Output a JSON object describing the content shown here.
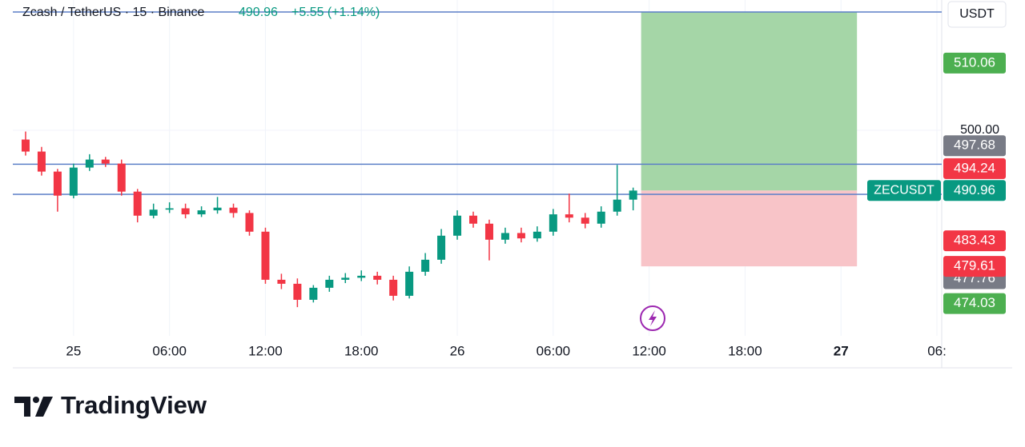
{
  "header": {
    "symbol": "Zcash / TetherUS · 15 · Binance",
    "price": "490.96",
    "change": "+5.55 (+1.14%)"
  },
  "currency": "USDT",
  "chart_data": {
    "type": "candlestick",
    "x": [
      -3,
      -2,
      -1,
      0,
      1,
      2,
      3,
      4,
      5,
      6,
      7,
      8,
      9,
      10,
      11,
      12,
      13,
      14,
      15,
      16,
      17,
      18,
      19,
      20,
      21,
      22,
      23,
      24,
      25,
      26,
      27,
      28,
      29,
      30,
      31,
      32,
      33,
      34,
      35
    ],
    "open": [
      498.6,
      496.8,
      493.8,
      490.2,
      494.4,
      495.6,
      495.0,
      490.8,
      487.2,
      488.1,
      488.3,
      487.4,
      488.0,
      488.4,
      487.6,
      484.8,
      477.6,
      477.0,
      474.6,
      476.4,
      477.6,
      477.9,
      478.2,
      477.6,
      475.2,
      478.8,
      480.6,
      484.2,
      487.2,
      486.0,
      483.6,
      484.6,
      483.8,
      484.8,
      487.4,
      486.9,
      486.0,
      487.8,
      489.6
    ],
    "high": [
      499.8,
      497.5,
      494.2,
      495.0,
      496.4,
      496.0,
      495.6,
      491.2,
      489.0,
      489.2,
      489.0,
      488.6,
      490.0,
      489.0,
      488.0,
      485.4,
      478.5,
      477.8,
      476.8,
      478.2,
      478.6,
      479.0,
      478.8,
      478.2,
      479.6,
      481.6,
      485.2,
      488.0,
      487.8,
      486.6,
      485.4,
      485.4,
      485.6,
      488.2,
      490.5,
      487.6,
      488.6,
      494.8,
      491.4
    ],
    "low": [
      496.2,
      493.2,
      487.8,
      489.8,
      493.9,
      494.5,
      490.2,
      486.2,
      486.8,
      487.6,
      486.8,
      487.0,
      487.5,
      486.9,
      484.2,
      477.0,
      476.2,
      473.5,
      474.2,
      475.8,
      477.1,
      477.4,
      476.9,
      474.5,
      474.8,
      478.2,
      480.0,
      483.6,
      485.4,
      480.5,
      483.0,
      483.2,
      483.3,
      484.2,
      486.2,
      485.3,
      485.4,
      487.2,
      488.0
    ],
    "close": [
      496.8,
      493.8,
      490.2,
      494.4,
      495.6,
      495.0,
      490.8,
      487.2,
      488.1,
      488.3,
      487.4,
      488.0,
      488.4,
      487.6,
      484.8,
      477.6,
      477.0,
      474.6,
      476.4,
      477.6,
      477.9,
      478.2,
      477.6,
      475.2,
      478.8,
      480.6,
      484.2,
      487.2,
      486.0,
      483.6,
      484.6,
      483.8,
      484.8,
      487.4,
      486.9,
      486.0,
      487.8,
      489.6,
      490.96
    ],
    "up_color": "#089981",
    "down_color": "#f23645",
    "xlim": [
      -3.8,
      54.3
    ],
    "ylim": [
      469.2,
      519.5
    ],
    "xticks": [
      {
        "value": 0,
        "label": "25"
      },
      {
        "value": 6,
        "label": "06:00"
      },
      {
        "value": 12,
        "label": "12:00"
      },
      {
        "value": 18,
        "label": "18:00"
      },
      {
        "value": 24,
        "label": "26"
      },
      {
        "value": 30,
        "label": "06:00"
      },
      {
        "value": 36,
        "label": "12:00"
      },
      {
        "value": 42,
        "label": "18:00"
      },
      {
        "value": 48,
        "label": "27"
      },
      {
        "value": 54,
        "label": "06:"
      }
    ],
    "yticks": [
      {
        "value": 500,
        "label": "500.00"
      }
    ],
    "grid": true,
    "lines": [
      517.7,
      494.9,
      490.4
    ],
    "line_color": "#5b7fc7",
    "position": {
      "entry": 490.96,
      "target": 517.7,
      "stop": 479.61,
      "x": [
        35.5,
        49.0
      ],
      "target_color": "#a5d6a7",
      "stop_color": "#f8c4c8"
    },
    "symbol_label": "ZECUSDT",
    "price_labels": [
      {
        "value": 510.06,
        "color": "#4caf50"
      },
      {
        "value": 497.68,
        "color": "#787b86"
      },
      {
        "value": 494.24,
        "color": "#f23645"
      },
      {
        "value": 490.96,
        "color": "#089981"
      },
      {
        "value": 483.43,
        "color": "#f23645"
      },
      {
        "value": 477.76,
        "color": "#787b86"
      },
      {
        "value": 479.61,
        "color": "#f23645"
      },
      {
        "value": 474.03,
        "color": "#4caf50"
      }
    ]
  },
  "brand": "TradingView"
}
